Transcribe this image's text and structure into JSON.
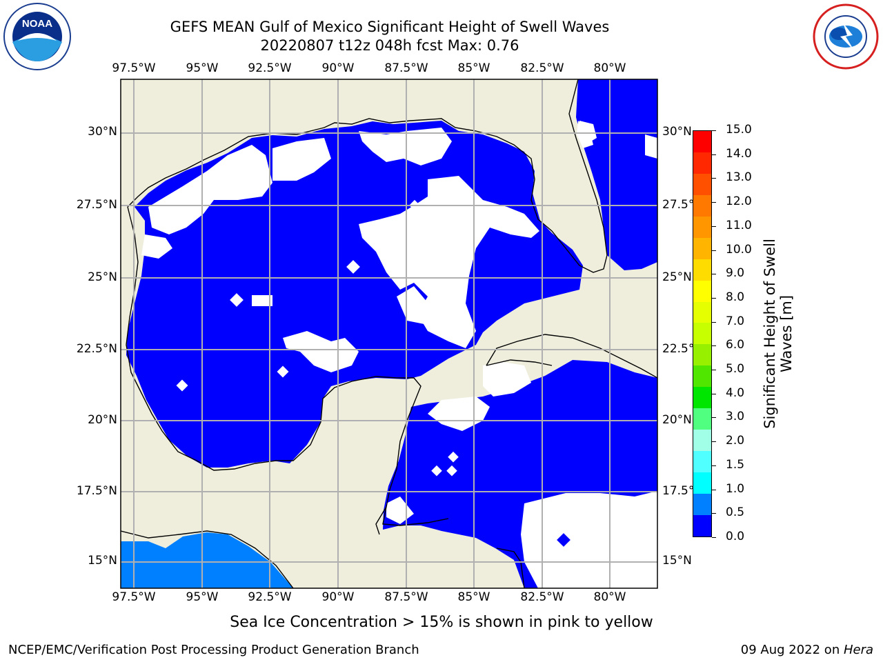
{
  "header": {
    "title_line1": "GEFS MEAN Gulf of Mexico Significant Height of Swell Waves",
    "title_line2": "20220807 t12z 048h fcst   Max: 0.76"
  },
  "logos": {
    "left": {
      "icon": "noaa-logo",
      "text": "NOAA"
    },
    "right": {
      "icon": "national-weather-service-logo",
      "text": "NATIONAL WEATHER SERVICE"
    }
  },
  "map": {
    "lon_labels": [
      "97.5°W",
      "95°W",
      "92.5°W",
      "90°W",
      "87.5°W",
      "85°W",
      "82.5°W",
      "80°W"
    ],
    "lat_labels_left": [
      "30°N",
      "27.5°N",
      "25°N",
      "22.5°N",
      "20°N",
      "17.5°N",
      "15°N"
    ],
    "lat_labels_right": [
      "30°N",
      "27.5°N",
      "25°N",
      "22.5°N",
      "20°N",
      "17.5°N",
      "15°N"
    ],
    "colors": {
      "land": "#efeedd",
      "ocean_low": "#0000ff",
      "ocean_mid": "#0080ff",
      "missing": "#ffffff",
      "grid": "#b0b0b0"
    }
  },
  "colorbar": {
    "ticks": [
      "15.0",
      "14.0",
      "13.0",
      "12.0",
      "11.0",
      "10.0",
      "9.0",
      "8.0",
      "7.0",
      "6.0",
      "5.0",
      "4.0",
      "3.0",
      "2.0",
      "1.5",
      "1.0",
      "0.5",
      "0.0"
    ],
    "segment_colors": [
      "#ff0000",
      "#ff2800",
      "#ff5000",
      "#ff7800",
      "#ff9600",
      "#ffb400",
      "#ffdc00",
      "#ffff00",
      "#e6ff00",
      "#c8ff00",
      "#96f000",
      "#50e600",
      "#00e600",
      "#50ff80",
      "#a0ffe6",
      "#50ffff",
      "#00ffff",
      "#0080ff",
      "#0000ff"
    ],
    "label_line1": "Significant Height of Swell",
    "label_line2": "Waves [m]"
  },
  "note": "Sea Ice Concentration > 15% is shown in pink to yellow",
  "footer": {
    "left": "NCEP/EMC/Verification Post Processing Product Generation Branch",
    "right_prefix": "09 Aug 2022 on ",
    "right_host": "Hera"
  }
}
